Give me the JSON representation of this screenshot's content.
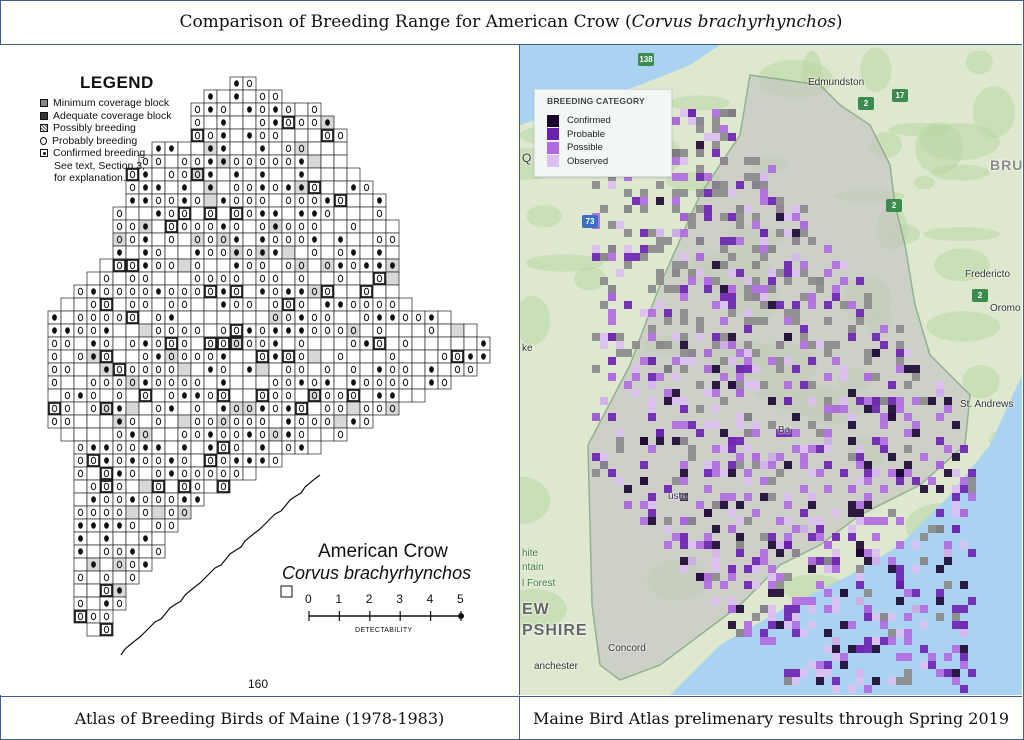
{
  "title": {
    "prefix": "Comparison of Breeding Range for American Crow (",
    "latin": "Corvus brachyrhynchos",
    "suffix": ")"
  },
  "left_panel": {
    "caption": "Atlas of Breeding Birds of Maine (1978-1983)",
    "legend": {
      "title": "LEGEND",
      "items": [
        {
          "label": "Minimum coverage block",
          "symbol": "dark-grey-square"
        },
        {
          "label": "Adequate coverage block",
          "symbol": "black-square"
        },
        {
          "label": "Possibly breeding",
          "symbol": "hatched-square"
        },
        {
          "label": "Probably breeding",
          "symbol": "open-o-square"
        },
        {
          "label": "Confirmed breeding",
          "symbol": "dot-square"
        }
      ],
      "note_lines": [
        "See text, Section 3,",
        "for explanation."
      ]
    },
    "species_common": "American Crow",
    "species_latin": "Corvus brachyrhynchos",
    "scale": {
      "ticks": [
        "0",
        "1",
        "2",
        "3",
        "4",
        "5"
      ],
      "label": "DETECTABILITY"
    },
    "page_number": "160"
  },
  "right_panel": {
    "caption": "Maine Bird Atlas prelimenary results through Spring 2019",
    "legend": {
      "title": "BREEDING CATEGORY",
      "items": [
        {
          "label": "Confirmed",
          "color": "#1a0530"
        },
        {
          "label": "Probable",
          "color": "#6a20b0"
        },
        {
          "label": "Possible",
          "color": "#b06ae0"
        },
        {
          "label": "Observed",
          "color": "#dcc0f2"
        }
      ]
    },
    "places": [
      "Edmundston",
      "Fredericto",
      "Oromo",
      "St. Andrews",
      "Concord",
      "anchester",
      "PSHIRE",
      "EW",
      "BRU",
      "ntain",
      "l Forest",
      "hite",
      "Q",
      "ke",
      "Ba",
      "usta"
    ],
    "shields": [
      "138",
      "17",
      "73",
      "2",
      "2",
      "2"
    ],
    "colors": {
      "water": "#a9d3f0",
      "land": "#dde8cf",
      "forest": "#b9d6a4",
      "mask": "#c7c9c3"
    }
  }
}
